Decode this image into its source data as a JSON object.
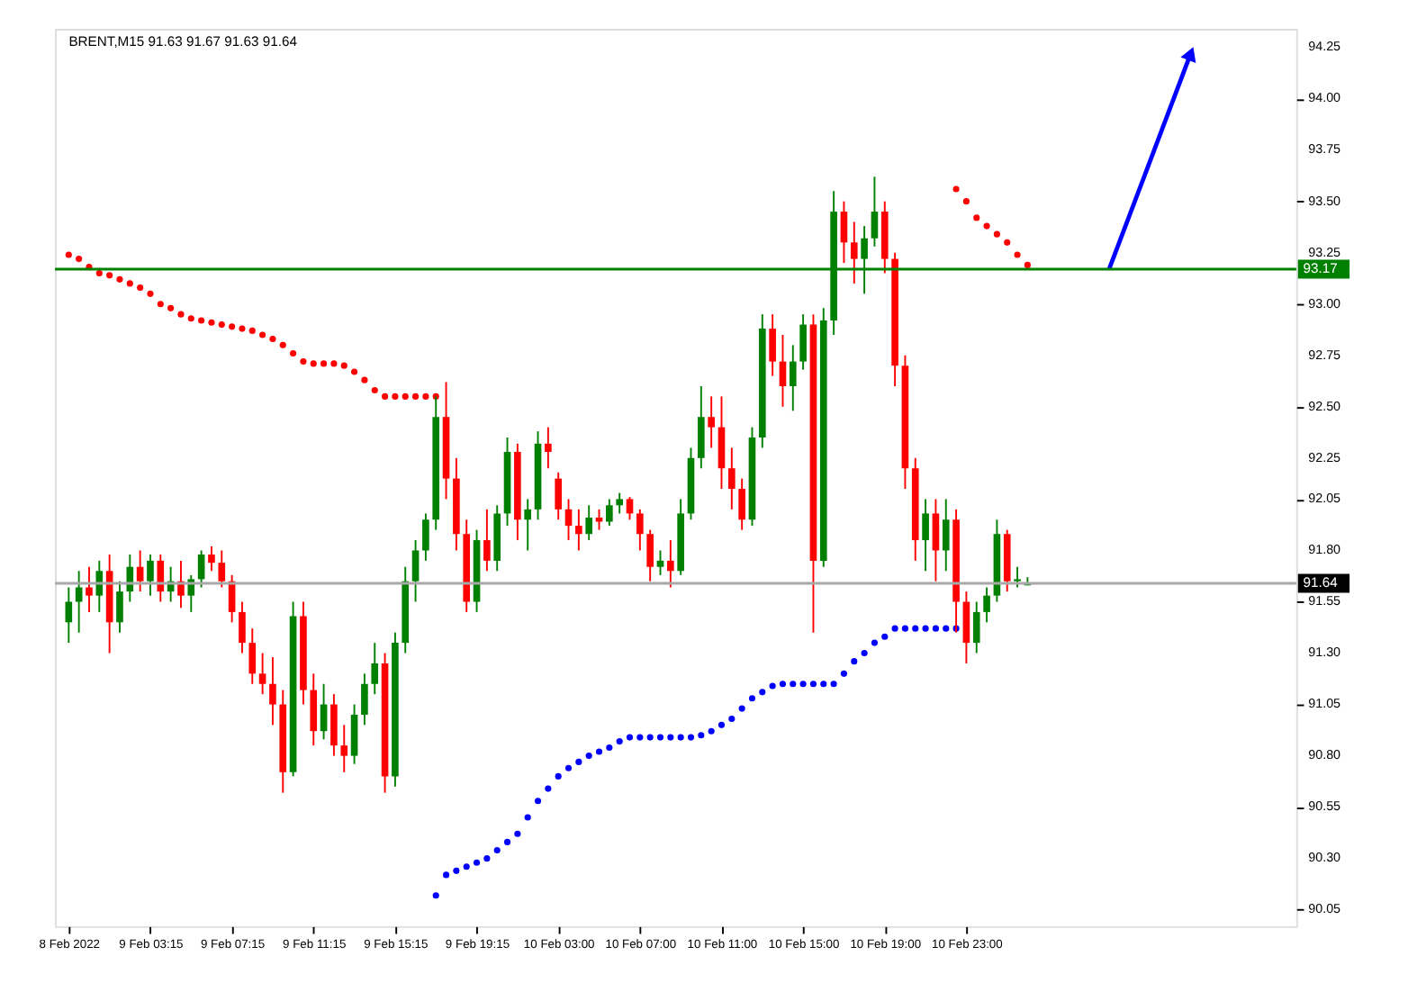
{
  "chart_data": {
    "type": "candlestick",
    "title": "BRENT,M15  91.63 91.67 91.63 91.64",
    "categories": [
      "8 Feb 2022",
      null,
      null,
      null,
      null,
      null,
      null,
      null,
      "9 Feb 03:15",
      null,
      null,
      null,
      null,
      null,
      null,
      null,
      "9 Feb 07:15",
      null,
      null,
      null,
      null,
      null,
      null,
      null,
      "9 Feb 11:15",
      null,
      null,
      null,
      null,
      null,
      null,
      null,
      "9 Feb 15:15",
      null,
      null,
      null,
      null,
      null,
      null,
      null,
      "9 Feb 19:15",
      null,
      null,
      null,
      null,
      null,
      null,
      null,
      "10 Feb 03:00",
      null,
      null,
      null,
      null,
      null,
      null,
      null,
      "10 Feb 07:00",
      null,
      null,
      null,
      null,
      null,
      null,
      null,
      "10 Feb 11:00",
      null,
      null,
      null,
      null,
      null,
      null,
      null,
      "10 Feb 15:00",
      null,
      null,
      null,
      null,
      null,
      null,
      null,
      "10 Feb 19:00",
      null,
      null,
      null,
      null,
      null,
      null,
      null,
      "10 Feb 23:00",
      null,
      null,
      null,
      null,
      null,
      null,
      null,
      null,
      null,
      null,
      null,
      null,
      null,
      null,
      null,
      null,
      null,
      null,
      null,
      null,
      null,
      null,
      null,
      null,
      null,
      null,
      null,
      null,
      null,
      null,
      null
    ],
    "ohlc": [
      [
        91.45,
        91.62,
        91.35,
        91.55
      ],
      [
        91.55,
        91.7,
        91.4,
        91.62
      ],
      [
        91.62,
        91.72,
        91.5,
        91.58
      ],
      [
        91.58,
        91.75,
        91.5,
        91.7
      ],
      [
        91.7,
        91.78,
        91.3,
        91.45
      ],
      [
        91.45,
        91.65,
        91.4,
        91.6
      ],
      [
        91.6,
        91.78,
        91.55,
        91.72
      ],
      [
        91.72,
        91.8,
        91.6,
        91.65
      ],
      [
        91.65,
        91.78,
        91.58,
        91.75
      ],
      [
        91.75,
        91.78,
        91.55,
        91.6
      ],
      [
        91.6,
        91.72,
        91.55,
        91.65
      ],
      [
        91.65,
        91.75,
        91.52,
        91.58
      ],
      [
        91.58,
        91.68,
        91.5,
        91.66
      ],
      [
        91.66,
        91.8,
        91.62,
        91.78
      ],
      [
        91.78,
        91.82,
        91.7,
        91.74
      ],
      [
        91.74,
        91.8,
        91.62,
        91.65
      ],
      [
        91.65,
        91.68,
        91.45,
        91.5
      ],
      [
        91.5,
        91.55,
        91.3,
        91.35
      ],
      [
        91.35,
        91.42,
        91.15,
        91.2
      ],
      [
        91.2,
        91.3,
        91.1,
        91.15
      ],
      [
        91.15,
        91.28,
        90.95,
        91.05
      ],
      [
        91.05,
        91.12,
        90.62,
        90.72
      ],
      [
        90.72,
        91.55,
        90.7,
        91.48
      ],
      [
        91.48,
        91.55,
        91.05,
        91.12
      ],
      [
        91.12,
        91.2,
        90.85,
        90.92
      ],
      [
        90.92,
        91.15,
        90.88,
        91.05
      ],
      [
        91.05,
        91.1,
        90.8,
        90.85
      ],
      [
        90.85,
        90.95,
        90.72,
        90.8
      ],
      [
        90.8,
        91.05,
        90.76,
        91.0
      ],
      [
        91.0,
        91.2,
        90.95,
        91.15
      ],
      [
        91.15,
        91.35,
        91.1,
        91.25
      ],
      [
        91.25,
        91.3,
        90.62,
        90.7
      ],
      [
        90.7,
        91.4,
        90.65,
        91.35
      ],
      [
        91.35,
        91.72,
        91.3,
        91.65
      ],
      [
        91.65,
        91.85,
        91.55,
        91.8
      ],
      [
        91.8,
        91.98,
        91.75,
        91.95
      ],
      [
        91.95,
        92.55,
        91.9,
        92.45
      ],
      [
        92.45,
        92.62,
        92.05,
        92.15
      ],
      [
        92.15,
        92.25,
        91.8,
        91.88
      ],
      [
        91.88,
        91.95,
        91.5,
        91.55
      ],
      [
        91.55,
        91.9,
        91.5,
        91.85
      ],
      [
        91.85,
        92.0,
        91.7,
        91.75
      ],
      [
        91.75,
        92.02,
        91.7,
        91.98
      ],
      [
        91.98,
        92.35,
        91.92,
        92.28
      ],
      [
        92.28,
        92.32,
        91.85,
        91.95
      ],
      [
        91.95,
        92.05,
        91.8,
        92.0
      ],
      [
        92.0,
        92.38,
        91.95,
        92.32
      ],
      [
        92.32,
        92.4,
        92.2,
        92.28
      ],
      [
        92.15,
        92.18,
        91.95,
        92.0
      ],
      [
        92.0,
        92.05,
        91.85,
        91.92
      ],
      [
        91.92,
        92.0,
        91.8,
        91.88
      ],
      [
        91.88,
        92.02,
        91.85,
        91.96
      ],
      [
        91.96,
        92.0,
        91.9,
        91.94
      ],
      [
        91.94,
        92.05,
        91.92,
        92.02
      ],
      [
        92.02,
        92.08,
        91.98,
        92.05
      ],
      [
        92.05,
        92.06,
        91.95,
        91.98
      ],
      [
        91.98,
        92.0,
        91.8,
        91.88
      ],
      [
        91.88,
        91.9,
        91.65,
        91.72
      ],
      [
        91.72,
        91.8,
        91.68,
        91.75
      ],
      [
        91.75,
        91.85,
        91.62,
        91.7
      ],
      [
        91.7,
        92.05,
        91.68,
        91.98
      ],
      [
        91.98,
        92.3,
        91.95,
        92.25
      ],
      [
        92.25,
        92.6,
        92.2,
        92.45
      ],
      [
        92.45,
        92.55,
        92.3,
        92.4
      ],
      [
        92.4,
        92.55,
        92.1,
        92.2
      ],
      [
        92.2,
        92.3,
        92.0,
        92.1
      ],
      [
        92.1,
        92.15,
        91.9,
        91.95
      ],
      [
        91.95,
        92.4,
        91.92,
        92.35
      ],
      [
        92.35,
        92.95,
        92.3,
        92.88
      ],
      [
        92.88,
        92.95,
        92.65,
        92.72
      ],
      [
        92.72,
        92.85,
        92.5,
        92.6
      ],
      [
        92.6,
        92.8,
        92.48,
        92.72
      ],
      [
        92.72,
        92.95,
        92.68,
        92.9
      ],
      [
        92.9,
        92.95,
        91.4,
        91.75
      ],
      [
        91.75,
        92.98,
        91.72,
        92.92
      ],
      [
        92.92,
        93.55,
        92.85,
        93.45
      ],
      [
        93.45,
        93.5,
        93.2,
        93.3
      ],
      [
        93.3,
        93.4,
        93.1,
        93.22
      ],
      [
        93.22,
        93.38,
        93.05,
        93.32
      ],
      [
        93.32,
        93.62,
        93.28,
        93.45
      ],
      [
        93.45,
        93.5,
        93.15,
        93.22
      ],
      [
        93.22,
        93.25,
        92.6,
        92.7
      ],
      [
        92.7,
        92.75,
        92.1,
        92.2
      ],
      [
        92.2,
        92.25,
        91.75,
        91.85
      ],
      [
        91.85,
        92.05,
        91.7,
        91.98
      ],
      [
        91.98,
        92.05,
        91.65,
        91.8
      ],
      [
        91.8,
        92.05,
        91.7,
        91.95
      ],
      [
        91.95,
        92.0,
        91.4,
        91.55
      ],
      [
        91.55,
        91.6,
        91.25,
        91.35
      ],
      [
        91.35,
        91.55,
        91.3,
        91.5
      ],
      [
        91.5,
        91.62,
        91.45,
        91.58
      ],
      [
        91.58,
        91.95,
        91.55,
        91.88
      ],
      [
        91.88,
        91.9,
        91.6,
        91.65
      ],
      [
        91.65,
        91.72,
        91.62,
        91.66
      ],
      [
        91.63,
        91.67,
        91.63,
        91.64
      ],
      null,
      null,
      null,
      null,
      null,
      null,
      null,
      null,
      null,
      null,
      null,
      null,
      null,
      null,
      null,
      null,
      null,
      null,
      null,
      null,
      null,
      null,
      null,
      null,
      null
    ],
    "colors": [
      "#008000",
      "#008000",
      "#ff0000",
      "#008000",
      "#ff0000",
      "#008000",
      "#008000",
      "#ff0000",
      "#008000",
      "#ff0000",
      "#008000",
      "#ff0000",
      "#008000",
      "#008000",
      "#ff0000",
      "#ff0000",
      "#ff0000",
      "#ff0000",
      "#ff0000",
      "#ff0000",
      "#ff0000",
      "#ff0000",
      "#008000",
      "#ff0000",
      "#ff0000",
      "#008000",
      "#ff0000",
      "#ff0000",
      "#008000",
      "#008000",
      "#008000",
      "#ff0000",
      "#008000",
      "#008000",
      "#008000",
      "#008000",
      "#008000",
      "#ff0000",
      "#ff0000",
      "#ff0000",
      "#008000",
      "#ff0000",
      "#008000",
      "#008000",
      "#ff0000",
      "#008000",
      "#008000",
      "#ff0000",
      "#ff0000",
      "#ff0000",
      "#ff0000",
      "#008000",
      "#ff0000",
      "#008000",
      "#008000",
      "#ff0000",
      "#ff0000",
      "#ff0000",
      "#008000",
      "#ff0000",
      "#008000",
      "#008000",
      "#008000",
      "#ff0000",
      "#ff0000",
      "#ff0000",
      "#ff0000",
      "#008000",
      "#008000",
      "#ff0000",
      "#ff0000",
      "#008000",
      "#008000",
      "#ff0000",
      "#008000",
      "#008000",
      "#ff0000",
      "#ff0000",
      "#008000",
      "#008000",
      "#ff0000",
      "#ff0000",
      "#ff0000",
      "#ff0000",
      "#008000",
      "#ff0000",
      "#008000",
      "#ff0000",
      "#ff0000",
      "#008000",
      "#008000",
      "#008000",
      "#ff0000",
      "#008000",
      "#008000",
      null,
      null,
      null,
      null,
      null,
      null,
      null,
      null,
      null,
      null,
      null,
      null,
      null,
      null,
      null,
      null,
      null,
      null,
      null,
      null,
      null,
      null,
      null,
      null,
      null
    ],
    "series": [
      {
        "type": "scatter",
        "color": "#ff0000",
        "marker": "circle",
        "values": [
          93.24,
          93.22,
          93.18,
          93.15,
          93.14,
          93.12,
          93.1,
          93.08,
          93.05,
          93.0,
          92.98,
          92.95,
          92.93,
          92.92,
          92.91,
          92.9,
          92.89,
          92.88,
          92.87,
          92.85,
          92.83,
          92.8,
          92.76,
          92.72,
          92.71,
          92.71,
          92.71,
          92.7,
          92.67,
          92.63,
          92.58,
          92.55,
          92.55,
          92.55,
          92.55,
          92.55,
          92.55,
          null,
          null,
          null,
          null,
          null,
          null,
          null,
          null,
          null,
          null,
          null,
          null,
          null,
          null,
          null,
          null,
          null,
          null,
          null,
          null,
          null,
          null,
          null,
          null,
          null,
          null,
          null,
          null,
          null,
          null,
          null,
          null,
          null,
          null,
          null,
          null,
          null,
          null,
          null,
          null,
          null,
          null,
          null,
          null,
          null,
          null,
          null,
          null,
          null,
          null,
          null,
          null,
          null,
          null,
          null,
          null,
          null,
          null,
          null,
          null,
          null,
          null,
          null,
          null,
          null,
          null,
          null,
          null,
          null,
          null,
          null,
          null,
          null,
          null,
          null,
          null,
          null,
          null,
          null,
          null,
          null,
          null,
          null
        ]
      },
      {
        "type": "scatter",
        "color": "#ff0000",
        "marker": "circle",
        "values": [
          null,
          null,
          null,
          null,
          null,
          null,
          null,
          null,
          null,
          null,
          null,
          null,
          null,
          null,
          null,
          null,
          null,
          null,
          null,
          null,
          null,
          null,
          null,
          null,
          null,
          null,
          null,
          null,
          null,
          null,
          null,
          null,
          null,
          null,
          null,
          null,
          null,
          null,
          null,
          null,
          null,
          null,
          null,
          null,
          null,
          null,
          null,
          null,
          null,
          null,
          null,
          null,
          null,
          null,
          null,
          null,
          null,
          null,
          null,
          null,
          null,
          null,
          null,
          null,
          null,
          null,
          null,
          null,
          null,
          null,
          null,
          null,
          null,
          null,
          null,
          null,
          null,
          null,
          null,
          null,
          null,
          null,
          null,
          null,
          null,
          null,
          null,
          93.56,
          93.5,
          93.42,
          93.38,
          93.34,
          93.3,
          93.24,
          93.19,
          null,
          null,
          null,
          null,
          null,
          null,
          null,
          null,
          null,
          null,
          null,
          null,
          null,
          null,
          null,
          null,
          null,
          null,
          null,
          null,
          null,
          null,
          null,
          null,
          null
        ]
      },
      {
        "type": "scatter",
        "color": "#0000ff",
        "marker": "circle",
        "values": [
          null,
          null,
          null,
          null,
          null,
          null,
          null,
          null,
          null,
          null,
          null,
          null,
          null,
          null,
          null,
          null,
          null,
          null,
          null,
          null,
          null,
          null,
          null,
          null,
          null,
          null,
          null,
          null,
          null,
          null,
          null,
          null,
          null,
          null,
          null,
          null,
          90.12,
          90.22,
          90.24,
          90.26,
          90.28,
          90.3,
          90.34,
          90.38,
          90.42,
          90.5,
          90.58,
          90.64,
          90.7,
          90.74,
          90.77,
          90.8,
          90.82,
          90.84,
          90.87,
          90.89,
          90.89,
          90.89,
          90.89,
          90.89,
          90.89,
          90.89,
          90.9,
          90.92,
          90.95,
          90.98,
          91.03,
          91.08,
          91.11,
          91.14,
          91.15,
          91.15,
          91.15,
          91.15,
          91.15,
          91.15,
          91.2,
          91.26,
          91.3,
          91.35,
          91.38,
          91.42,
          91.42,
          91.42,
          91.42,
          91.42,
          91.42,
          91.42,
          null,
          null,
          null,
          null,
          null,
          null,
          null,
          null,
          null,
          null,
          null,
          null,
          null,
          null,
          null,
          null,
          null,
          null,
          null,
          null,
          null,
          null,
          null,
          null,
          null,
          null,
          null,
          null,
          null,
          null,
          null,
          null
        ]
      },
      {
        "type": "line",
        "color": "#0000ff",
        "values": [
          null,
          null,
          null,
          null,
          null,
          null,
          null,
          null,
          null,
          null,
          null,
          null,
          null,
          null,
          null,
          null,
          null,
          null,
          null,
          null,
          null,
          null,
          null,
          null,
          null,
          null,
          null,
          null,
          null,
          null,
          null,
          null,
          null,
          null,
          null,
          null,
          null,
          null,
          null,
          null,
          null,
          null,
          null,
          null,
          null,
          null,
          null,
          null,
          null,
          null,
          null,
          null,
          null,
          null,
          null,
          null,
          null,
          null,
          null,
          null,
          null,
          null,
          null,
          null,
          null,
          null,
          null,
          null,
          null,
          null,
          null,
          null,
          null,
          null,
          null,
          null,
          null,
          null,
          null,
          null,
          null,
          null,
          null,
          null,
          null,
          null,
          null,
          null,
          null,
          null,
          null,
          null,
          null,
          null,
          null,
          null,
          null,
          null,
          null,
          null,
          null,
          null,
          93.17,
          null,
          null,
          null,
          null,
          null,
          null,
          null,
          94.22,
          null,
          null,
          null,
          null,
          null,
          null,
          null,
          null,
          null
        ]
      }
    ],
    "ref_lines": [
      {
        "axis": "y",
        "value": 93.17,
        "label": "93.17",
        "color": "#008000"
      },
      {
        "axis": "y",
        "value": 91.64,
        "label": "91.64",
        "color": "#a8a8a8"
      }
    ],
    "ylim": [
      89.97,
      94.34
    ],
    "yticks": [
      {
        "value": 94.25,
        "label": "94.25"
      },
      {
        "value": 94,
        "label": "94.00"
      },
      {
        "value": 93.75,
        "label": "93.75"
      },
      {
        "value": 93.5,
        "label": "93.50"
      },
      {
        "value": 93.25,
        "label": "93.25"
      },
      {
        "value": 93,
        "label": "93.00"
      },
      {
        "value": 92.75,
        "label": "92.75"
      },
      {
        "value": 92.5,
        "label": "92.50"
      },
      {
        "value": 92.25,
        "label": "92.25"
      },
      {
        "value": 92.05,
        "label": "92.05"
      },
      {
        "value": 91.8,
        "label": "91.80"
      },
      {
        "value": 91.55,
        "label": "91.55"
      },
      {
        "value": 91.3,
        "label": "91.30"
      },
      {
        "value": 91.05,
        "label": "91.05"
      },
      {
        "value": 90.8,
        "label": "90.80"
      },
      {
        "value": 90.55,
        "label": "90.55"
      },
      {
        "value": 90.3,
        "label": "90.30"
      },
      {
        "value": 90.05,
        "label": "90.05"
      }
    ],
    "grid": false
  }
}
